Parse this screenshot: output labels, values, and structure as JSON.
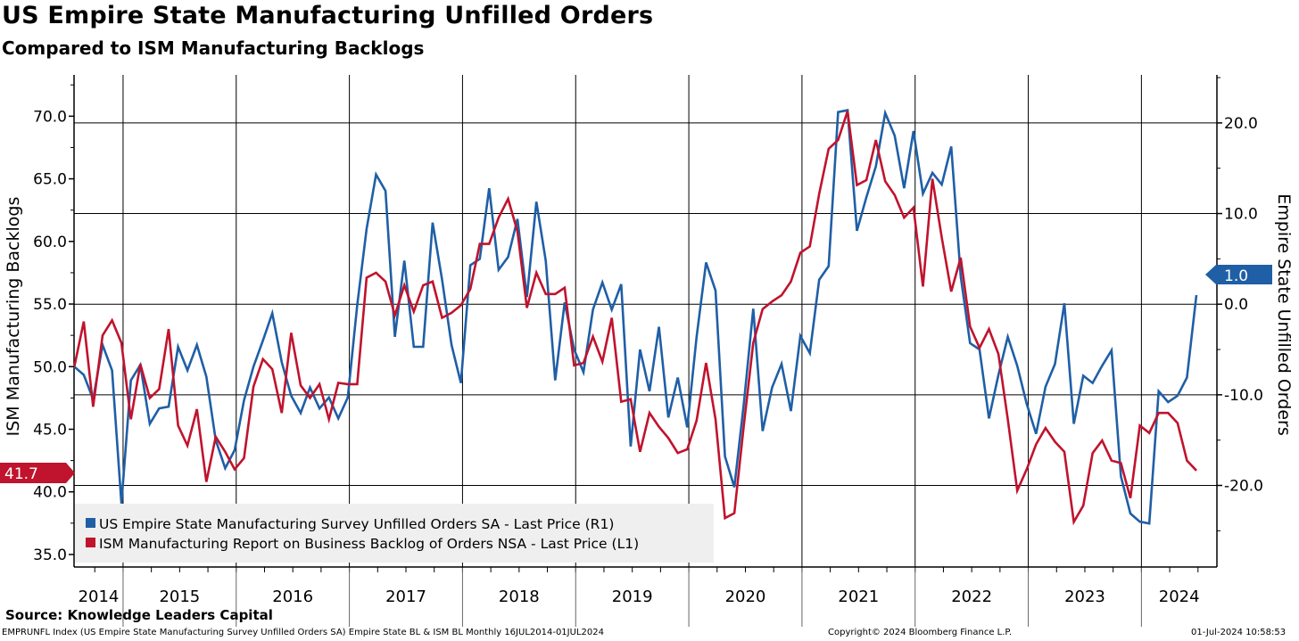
{
  "header": {
    "title": "US Empire State Manufacturing Unfilled Orders",
    "subtitle": "Compared to ISM Manufacturing Backlogs"
  },
  "footer": {
    "source": "Source: Knowledge Leaders Capital",
    "description": "EMPRUNFL Index (US Empire State Manufacturing Survey Unfilled Orders SA) Empire State BL & ISM BL  Monthly 16JUL2014-01JUL2024",
    "copyright": "Copyright© 2024 Bloomberg Finance L.P.",
    "timestamp": "01-Jul-2024 10:58:53"
  },
  "chart_data": {
    "type": "line",
    "title": "US Empire State Manufacturing Unfilled Orders",
    "subtitle": "Compared to ISM Manufacturing Backlogs",
    "x_start": "2014-08",
    "x_end": "2024-07",
    "frequency": "monthly",
    "year_labels": [
      "2014",
      "2015",
      "2016",
      "2017",
      "2018",
      "2019",
      "2020",
      "2021",
      "2022",
      "2023",
      "2024"
    ],
    "left_axis": {
      "label": "ISM Manufacturing Backlogs",
      "ylim": [
        34.0,
        73.3
      ],
      "ticks": [
        "35.0",
        "40.0",
        "45.0",
        "50.0",
        "55.0",
        "60.0",
        "65.0",
        "70.0"
      ],
      "tick_values": [
        35,
        40,
        45,
        50,
        55,
        60,
        65,
        70
      ]
    },
    "right_axis": {
      "label": "Empire State Unfilled Orders",
      "ylim": [
        -29.0,
        25.3
      ],
      "ticks": [
        "-20.0",
        "-10.0",
        "0.0",
        "10.0",
        "20.0"
      ],
      "tick_values": [
        -20,
        -10,
        0,
        10,
        20
      ]
    },
    "grid": true,
    "legend_position": "bottom-left",
    "series": [
      {
        "name": "US Empire State Manufacturing Survey Unfilled Orders SA - Last Price (R1)",
        "axis": "right",
        "color": "#1f5fa6",
        "last_value_label": "1.0",
        "values": [
          -6.9,
          -7.8,
          -10.5,
          -4.5,
          -7.3,
          -22.0,
          -8.4,
          -6.7,
          -13.2,
          -11.5,
          -11.3,
          -4.7,
          -7.3,
          -4.5,
          -8.0,
          -15.0,
          -18.1,
          -16.1,
          -10.6,
          -6.9,
          -4.0,
          -1.0,
          -6.4,
          -10.1,
          -12.0,
          -9.2,
          -11.5,
          -10.3,
          -12.6,
          -10.3,
          -0.1,
          8.3,
          14.3,
          12.5,
          -3.6,
          4.8,
          -4.7,
          -4.7,
          9.0,
          2.7,
          -4.5,
          -8.7,
          4.3,
          5.0,
          12.8,
          3.8,
          5.2,
          9.4,
          0.8,
          11.3,
          4.8,
          -8.4,
          0.2,
          -5.0,
          -7.5,
          -0.6,
          2.4,
          -0.6,
          2.2,
          -15.7,
          -5.0,
          -9.6,
          -2.5,
          -12.5,
          -8.1,
          -13.6,
          -3.6,
          4.6,
          1.5,
          -16.8,
          -20.2,
          -11.0,
          -0.5,
          -14.0,
          -9.2,
          -6.6,
          -11.8,
          -3.5,
          -5.4,
          2.7,
          4.2,
          21.2,
          21.4,
          8.1,
          11.8,
          15.2,
          21.1,
          18.6,
          12.8,
          19.1,
          12.2,
          14.5,
          13.2,
          17.4,
          3.1,
          -4.3,
          -5.0,
          -12.6,
          -7.8,
          -3.6,
          -6.8,
          -11.0,
          -14.3,
          -9.1,
          -6.6,
          0.1,
          -13.2,
          -7.9,
          -8.7,
          -6.8,
          -5.1,
          -19.0,
          -23.1,
          -24.0,
          -24.2,
          -9.6,
          -10.8,
          -10.1,
          -8.1,
          1.0
        ]
      },
      {
        "name": "ISM Manufacturing Report on Business Backlog of Orders NSA - Last Price (L1)",
        "axis": "left",
        "color": "#c0132d",
        "last_value_label": "41.7",
        "values": [
          50.0,
          53.6,
          46.8,
          52.5,
          53.7,
          51.9,
          45.8,
          50.2,
          47.5,
          48.2,
          53.0,
          45.3,
          43.7,
          46.6,
          40.8,
          44.4,
          43.2,
          41.8,
          42.7,
          48.4,
          50.6,
          49.8,
          46.3,
          52.7,
          48.5,
          47.5,
          48.6,
          45.8,
          48.7,
          48.6,
          48.6,
          57.1,
          57.5,
          56.8,
          54.1,
          56.5,
          54.4,
          56.5,
          56.8,
          53.9,
          54.3,
          54.9,
          56.2,
          59.8,
          59.8,
          61.9,
          63.4,
          60.8,
          54.7,
          57.5,
          55.8,
          55.8,
          56.3,
          50.1,
          50.3,
          52.4,
          50.4,
          53.9,
          47.2,
          47.4,
          43.2,
          46.3,
          45.2,
          44.3,
          43.1,
          43.4,
          45.7,
          50.3,
          45.8,
          37.9,
          38.3,
          45.3,
          51.9,
          54.6,
          55.2,
          55.7,
          56.8,
          59.1,
          59.6,
          63.8,
          67.4,
          68.1,
          70.4,
          64.5,
          64.9,
          68.1,
          64.8,
          63.7,
          61.9,
          62.7,
          56.4,
          65.0,
          60.3,
          56.0,
          58.7,
          53.2,
          51.5,
          53.0,
          51.0,
          45.8,
          40.1,
          41.8,
          43.8,
          45.1,
          44.0,
          43.2,
          37.6,
          38.9,
          43.1,
          44.1,
          42.5,
          42.3,
          39.5,
          45.3,
          44.7,
          46.3,
          46.3,
          45.5,
          42.5,
          41.7
        ]
      }
    ]
  }
}
